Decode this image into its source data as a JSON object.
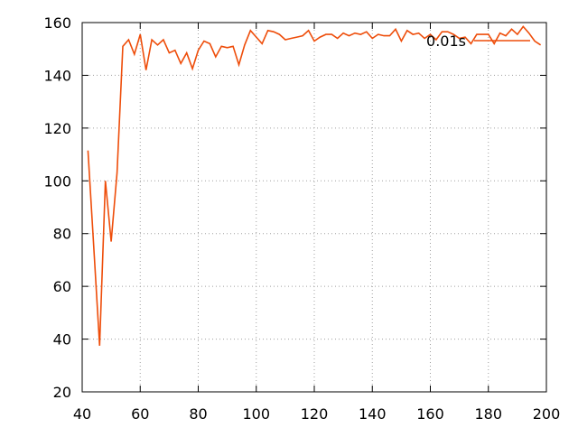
{
  "chart_data": {
    "type": "line",
    "title": "",
    "xlabel": "",
    "ylabel": "",
    "xlim": [
      40,
      200
    ],
    "ylim": [
      20,
      160
    ],
    "xticks": [
      40,
      60,
      80,
      100,
      120,
      140,
      160,
      180,
      200
    ],
    "yticks": [
      20,
      40,
      60,
      80,
      100,
      120,
      140,
      160
    ],
    "grid": true,
    "legend_position": "top-right",
    "series": [
      {
        "name": "0.01s",
        "color": "#ee4d0a",
        "x": [
          42,
          44,
          46,
          48,
          50,
          52,
          54,
          56,
          58,
          60,
          62,
          64,
          66,
          68,
          70,
          72,
          74,
          76,
          78,
          80,
          82,
          84,
          86,
          88,
          90,
          92,
          94,
          96,
          98,
          100,
          102,
          104,
          106,
          108,
          110,
          112,
          114,
          116,
          118,
          120,
          122,
          124,
          126,
          128,
          130,
          132,
          134,
          136,
          138,
          140,
          142,
          144,
          146,
          148,
          150,
          152,
          154,
          156,
          158,
          160,
          162,
          164,
          166,
          168,
          170,
          172,
          174,
          176,
          178,
          180,
          182,
          184,
          186,
          188,
          190,
          192,
          194,
          196,
          198
        ],
        "values": [
          111.5,
          75,
          37.5,
          100,
          77,
          103,
          151,
          153.5,
          148,
          155.5,
          142,
          153.5,
          151.5,
          153.5,
          148.5,
          149.5,
          144.5,
          148.5,
          142.5,
          149.5,
          153,
          152,
          147,
          151,
          150.5,
          151,
          144,
          151.5,
          157,
          154.5,
          152,
          157,
          156.5,
          155.5,
          153.5,
          154,
          154.5,
          155,
          157,
          153,
          154.5,
          155.5,
          155.5,
          154,
          156,
          155,
          156,
          155.5,
          156.5,
          154,
          155.5,
          155,
          155,
          157.5,
          153,
          157,
          155.5,
          156,
          154,
          155.5,
          153.5,
          156.5,
          156.5,
          155.5,
          154,
          154.5,
          152,
          155.5,
          155.5,
          155.5,
          152,
          156,
          155,
          157.5,
          155.5,
          158.5,
          156,
          153,
          151.5
        ]
      }
    ]
  }
}
